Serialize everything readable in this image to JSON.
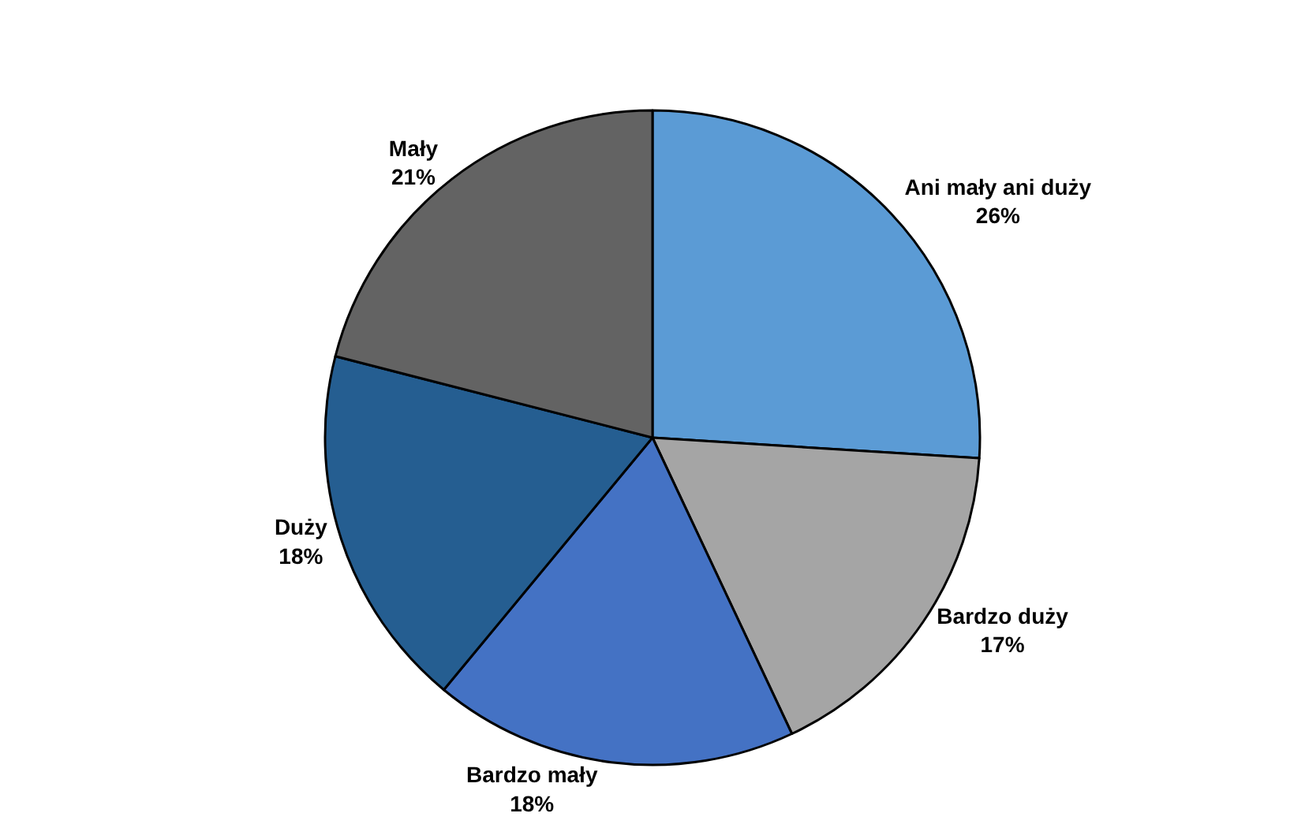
{
  "chart_data": {
    "type": "pie",
    "categories": [
      "Ani mały ani duży",
      "Bardzo duży",
      "Bardzo mały",
      "Duży",
      "Mały"
    ],
    "values": [
      26,
      17,
      18,
      18,
      21
    ],
    "value_labels": [
      "26%",
      "17%",
      "18%",
      "18%",
      "21%"
    ],
    "colors": [
      "#5b9bd5",
      "#a5a5a5",
      "#4472c4",
      "#255e91",
      "#636363"
    ],
    "legend": false
  }
}
